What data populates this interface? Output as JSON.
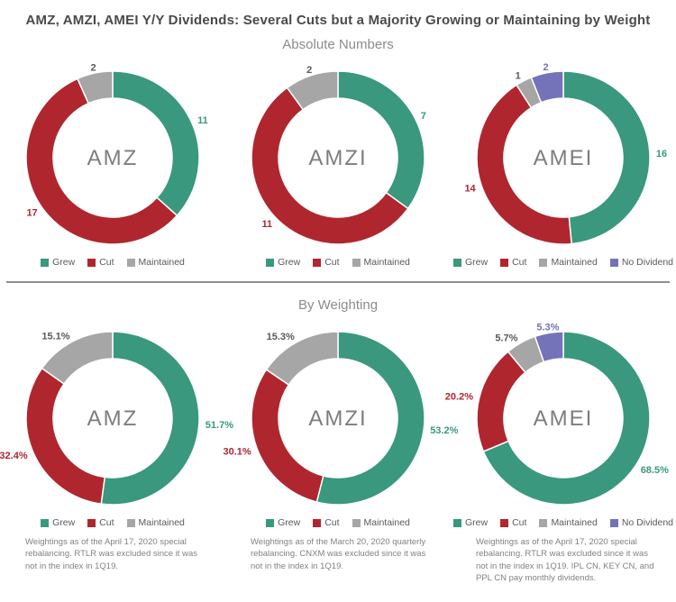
{
  "title": "AMZ, AMZI, AMEI Y/Y Dividends: Several Cuts but a Majority Growing or Maintaining by Weight",
  "sections": {
    "absolute": {
      "subtitle": "Absolute Numbers"
    },
    "weighting": {
      "subtitle": "By Weighting"
    }
  },
  "colors": {
    "grew": "#39987E",
    "cut": "#B0262F",
    "maintained": "#A6A6A6",
    "no_dividend": "#7472B8"
  },
  "label_colors": {
    "grew": "#39987E",
    "cut": "#B0262F",
    "maintained": "#595959",
    "no_dividend": "#7472B8"
  },
  "chart_data": [
    {
      "type": "pie",
      "section": "Absolute Numbers",
      "center_label": "AMZ",
      "categories": [
        "Grew",
        "Cut",
        "Maintained"
      ],
      "color_keys": [
        "grew",
        "cut",
        "maintained"
      ],
      "values": [
        11,
        17,
        2
      ],
      "labels": [
        "11",
        "17",
        "2"
      ],
      "legend_position": "bottom"
    },
    {
      "type": "pie",
      "section": "Absolute Numbers",
      "center_label": "AMZI",
      "categories": [
        "Grew",
        "Cut",
        "Maintained"
      ],
      "color_keys": [
        "grew",
        "cut",
        "maintained"
      ],
      "values": [
        7,
        11,
        2
      ],
      "labels": [
        "7",
        "11",
        "2"
      ],
      "legend_position": "bottom"
    },
    {
      "type": "pie",
      "section": "Absolute Numbers",
      "center_label": "AMEI",
      "categories": [
        "Grew",
        "Cut",
        "Maintained",
        "No Dividend"
      ],
      "color_keys": [
        "grew",
        "cut",
        "maintained",
        "no_dividend"
      ],
      "values": [
        16,
        14,
        1,
        2
      ],
      "labels": [
        "16",
        "14",
        "1",
        "2"
      ],
      "legend_position": "bottom"
    },
    {
      "type": "pie",
      "section": "By Weighting",
      "center_label": "AMZ",
      "categories": [
        "Grew",
        "Cut",
        "Maintained"
      ],
      "color_keys": [
        "grew",
        "cut",
        "maintained"
      ],
      "values": [
        51.7,
        32.4,
        15.1
      ],
      "labels": [
        "51.7%",
        "32.4%",
        "15.1%"
      ],
      "legend_position": "bottom"
    },
    {
      "type": "pie",
      "section": "By Weighting",
      "center_label": "AMZI",
      "categories": [
        "Grew",
        "Cut",
        "Maintained"
      ],
      "color_keys": [
        "grew",
        "cut",
        "maintained"
      ],
      "values": [
        53.2,
        30.1,
        15.3
      ],
      "labels": [
        "53.2%",
        "30.1%",
        "15.3%"
      ],
      "legend_position": "bottom"
    },
    {
      "type": "pie",
      "section": "By Weighting",
      "center_label": "AMEI",
      "categories": [
        "Grew",
        "Cut",
        "Maintained",
        "No Dividend"
      ],
      "color_keys": [
        "grew",
        "cut",
        "maintained",
        "no_dividend"
      ],
      "values": [
        68.5,
        20.2,
        5.7,
        5.3
      ],
      "labels": [
        "68.5%",
        "20.2%",
        "5.7%",
        "5.3%"
      ],
      "legend_position": "bottom"
    }
  ],
  "footnotes": [
    "Weightings as of the April 17, 2020 special rebalancing. RTLR was excluded since it was not in the index in 1Q19.",
    "Weightings as of the March 20, 2020 quarterly rebalancing. CNXM was excluded since it was not in the index in 1Q19.",
    "Weightings as of the April 17, 2020 special rebalancing. RTLR was excluded since it was not in the index in 1Q19. IPL CN, KEY CN, and PPL CN pay monthly dividends."
  ]
}
